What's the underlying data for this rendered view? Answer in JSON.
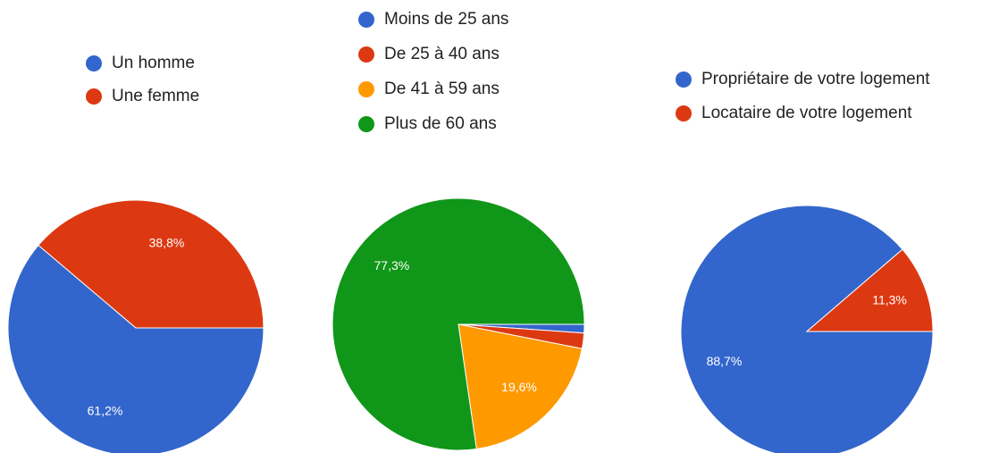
{
  "chart_data": [
    {
      "type": "pie",
      "categories": [
        "Un homme",
        "Une femme"
      ],
      "values": [
        61.2,
        38.8
      ],
      "value_labels": [
        "61,2%",
        "38,8%"
      ],
      "colors": [
        "#3366cc",
        "#dc3912"
      ]
    },
    {
      "type": "pie",
      "categories": [
        "Moins de 25 ans",
        "De 25 à 40 ans",
        "De 41 à 59 ans",
        "Plus de 60 ans"
      ],
      "values": [
        1.1,
        2.0,
        19.6,
        77.3
      ],
      "value_labels": [
        null,
        null,
        "19,6%",
        "77,3%"
      ],
      "colors": [
        "#3366cc",
        "#dc3912",
        "#ff9900",
        "#109618"
      ]
    },
    {
      "type": "pie",
      "categories": [
        "Propriétaire de votre logement",
        "Locataire de votre logement"
      ],
      "values": [
        88.7,
        11.3
      ],
      "value_labels": [
        "88,7%",
        "11,3%"
      ],
      "colors": [
        "#3366cc",
        "#dc3912"
      ]
    }
  ]
}
